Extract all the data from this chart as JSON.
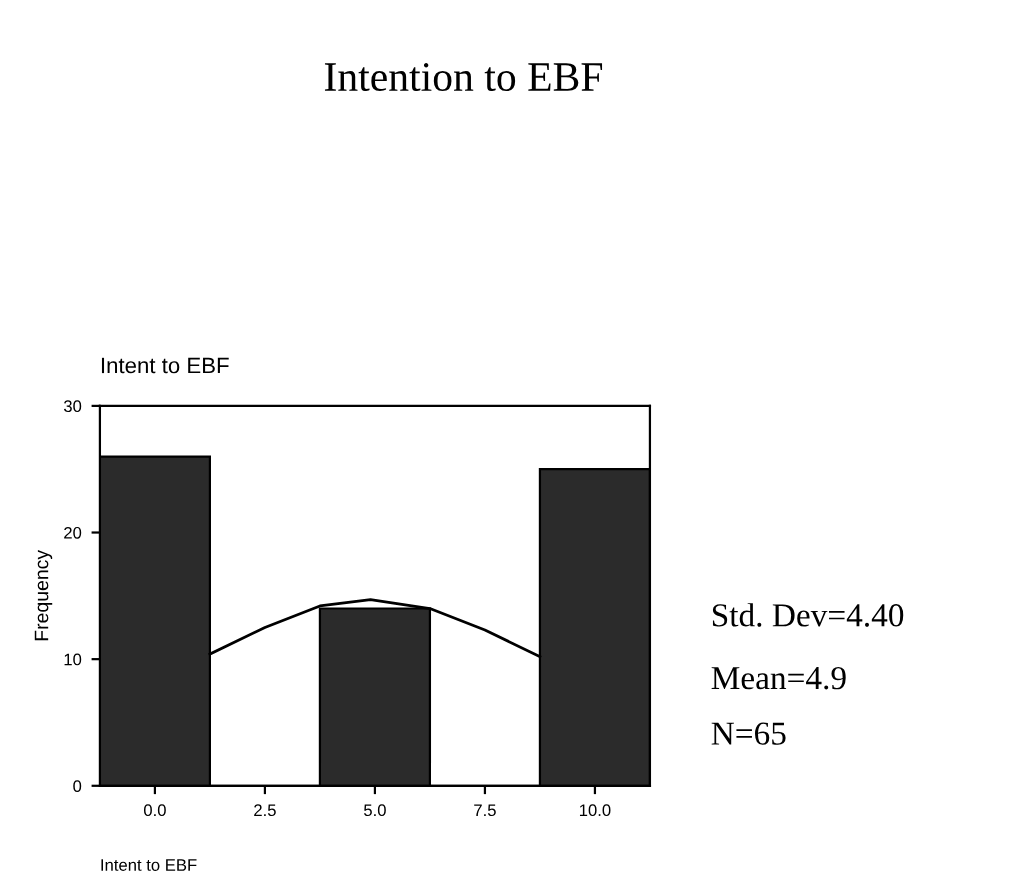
{
  "chart_data": {
    "type": "histogram",
    "title": "Intention to EBF",
    "subtitle": "Intent to EBF",
    "xlabel": "Intent to EBF",
    "ylabel": "Frequency",
    "bins": [
      -1.25,
      1.25,
      3.75,
      6.25,
      8.75,
      11.25
    ],
    "series": [
      {
        "color": "#2b2b2b",
        "values": [
          26,
          0,
          14,
          0,
          25
        ]
      },
      {
        "type": "line",
        "color": "#000000",
        "x": [
          1.25,
          2.5,
          3.75,
          4.9,
          6.25,
          7.5,
          8.75
        ],
        "values": [
          10.4,
          12.5,
          14.2,
          14.7,
          14.0,
          12.3,
          10.2
        ]
      }
    ],
    "xlim": [
      -1.25,
      11.25
    ],
    "ylim": [
      0,
      30
    ],
    "xticks": [
      {
        "value": 0,
        "label": "0.0"
      },
      {
        "value": 2.5,
        "label": "2.5"
      },
      {
        "value": 5,
        "label": "5.0"
      },
      {
        "value": 7.5,
        "label": "7.5"
      },
      {
        "value": 10,
        "label": "10.0"
      }
    ],
    "yticks": [
      0,
      10,
      20,
      30
    ],
    "annotations": [
      "Std. Dev=4.40",
      "Mean=4.9",
      "N=65"
    ],
    "grid": false,
    "legend": false
  }
}
